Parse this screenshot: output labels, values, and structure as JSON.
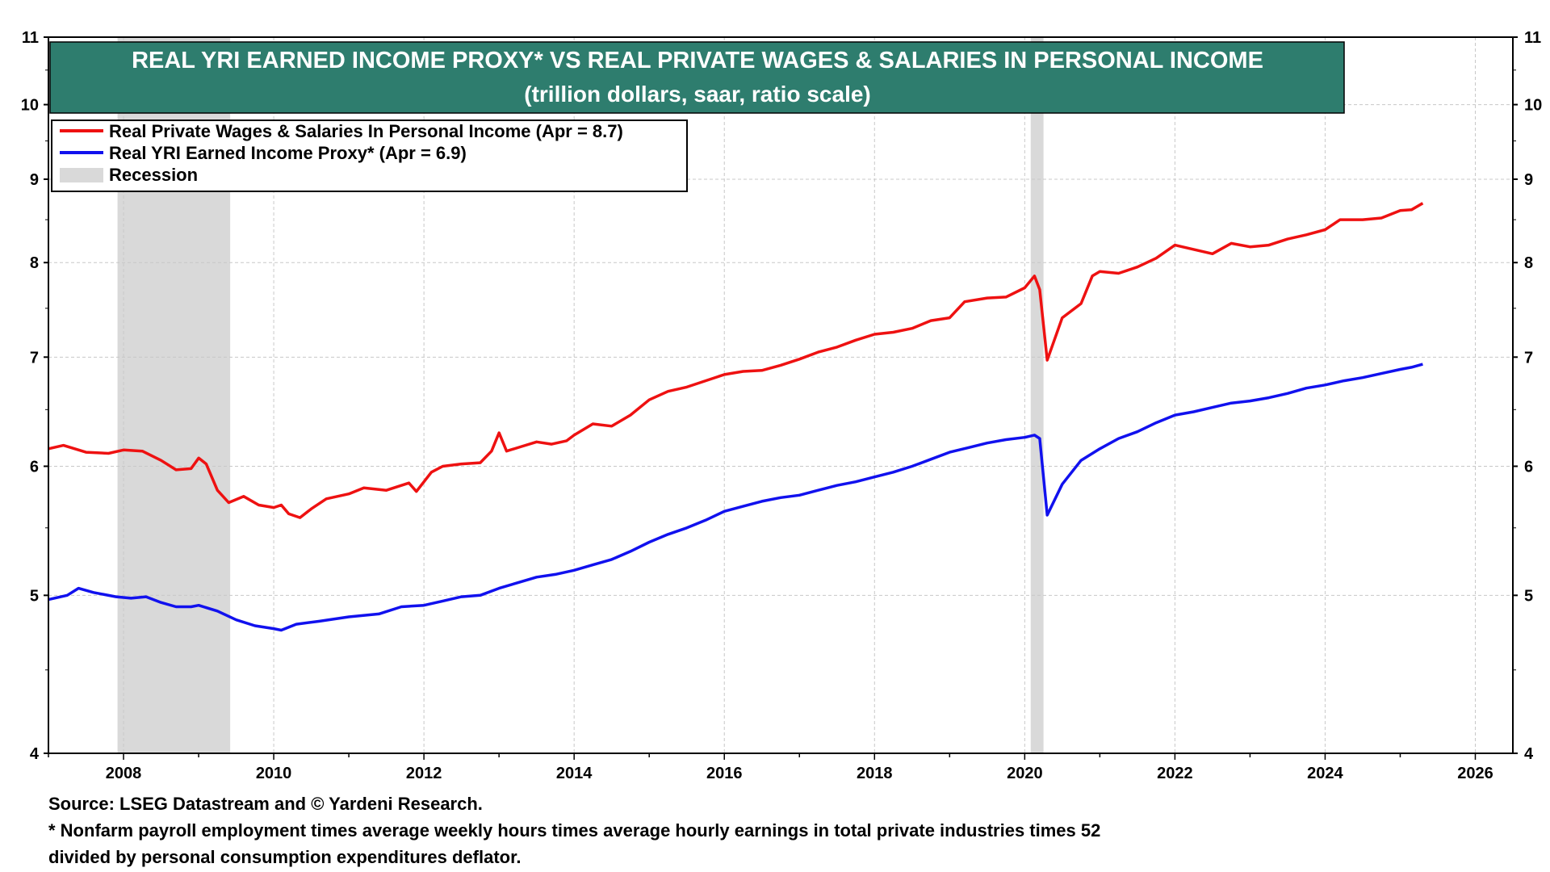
{
  "chart_data": {
    "type": "line",
    "title": "REAL YRI EARNED INCOME PROXY* VS REAL PRIVATE WAGES & SALARIES IN PERSONAL INCOME",
    "subtitle": "(trillion dollars, saar, ratio scale)",
    "yscale": "log",
    "ylim": [
      4,
      11
    ],
    "xlim": [
      2007.0,
      2026.5
    ],
    "yticks": [
      4,
      5,
      6,
      7,
      8,
      9,
      10,
      11
    ],
    "xticks": [
      2008,
      2010,
      2012,
      2014,
      2016,
      2018,
      2020,
      2022,
      2024,
      2026
    ],
    "grid": true,
    "legend_position": "top-left",
    "colors": {
      "title_bg": "#2e7d6e",
      "red": "#ee1111",
      "blue": "#1111ee",
      "recession": "#d9d9d9"
    },
    "legend": [
      {
        "label": "Real Private Wages & Salaries In Personal Income (Apr = 8.7)",
        "kind": "line",
        "color": "#ee1111"
      },
      {
        "label": "Real YRI Earned Income Proxy* (Apr = 6.9)",
        "kind": "line",
        "color": "#1111ee"
      },
      {
        "label": "Recession",
        "kind": "band",
        "color": "#d9d9d9"
      }
    ],
    "recessions": [
      [
        2007.92,
        2009.42
      ],
      [
        2020.08,
        2020.25
      ]
    ],
    "series": [
      {
        "color": "#ee1111",
        "points": [
          [
            2007.0,
            6.15
          ],
          [
            2007.2,
            6.18
          ],
          [
            2007.5,
            6.12
          ],
          [
            2007.8,
            6.11
          ],
          [
            2008.0,
            6.14
          ],
          [
            2008.25,
            6.13
          ],
          [
            2008.5,
            6.05
          ],
          [
            2008.7,
            5.97
          ],
          [
            2008.9,
            5.98
          ],
          [
            2009.0,
            6.07
          ],
          [
            2009.1,
            6.02
          ],
          [
            2009.25,
            5.8
          ],
          [
            2009.4,
            5.7
          ],
          [
            2009.6,
            5.75
          ],
          [
            2009.8,
            5.68
          ],
          [
            2010.0,
            5.66
          ],
          [
            2010.1,
            5.68
          ],
          [
            2010.2,
            5.61
          ],
          [
            2010.35,
            5.58
          ],
          [
            2010.5,
            5.65
          ],
          [
            2010.7,
            5.73
          ],
          [
            2011.0,
            5.77
          ],
          [
            2011.2,
            5.82
          ],
          [
            2011.5,
            5.8
          ],
          [
            2011.8,
            5.86
          ],
          [
            2011.9,
            5.79
          ],
          [
            2012.1,
            5.95
          ],
          [
            2012.25,
            6.0
          ],
          [
            2012.5,
            6.02
          ],
          [
            2012.75,
            6.03
          ],
          [
            2012.9,
            6.13
          ],
          [
            2013.0,
            6.29
          ],
          [
            2013.1,
            6.13
          ],
          [
            2013.3,
            6.17
          ],
          [
            2013.5,
            6.21
          ],
          [
            2013.7,
            6.19
          ],
          [
            2013.9,
            6.22
          ],
          [
            2014.0,
            6.27
          ],
          [
            2014.25,
            6.37
          ],
          [
            2014.5,
            6.35
          ],
          [
            2014.75,
            6.45
          ],
          [
            2015.0,
            6.59
          ],
          [
            2015.25,
            6.67
          ],
          [
            2015.5,
            6.71
          ],
          [
            2015.75,
            6.77
          ],
          [
            2016.0,
            6.83
          ],
          [
            2016.25,
            6.86
          ],
          [
            2016.5,
            6.87
          ],
          [
            2016.75,
            6.92
          ],
          [
            2017.0,
            6.98
          ],
          [
            2017.25,
            7.05
          ],
          [
            2017.5,
            7.1
          ],
          [
            2017.75,
            7.17
          ],
          [
            2018.0,
            7.23
          ],
          [
            2018.25,
            7.25
          ],
          [
            2018.5,
            7.29
          ],
          [
            2018.75,
            7.37
          ],
          [
            2019.0,
            7.4
          ],
          [
            2019.2,
            7.57
          ],
          [
            2019.5,
            7.61
          ],
          [
            2019.75,
            7.62
          ],
          [
            2020.0,
            7.72
          ],
          [
            2020.13,
            7.85
          ],
          [
            2020.2,
            7.7
          ],
          [
            2020.3,
            6.97
          ],
          [
            2020.5,
            7.4
          ],
          [
            2020.75,
            7.55
          ],
          [
            2020.9,
            7.85
          ],
          [
            2021.0,
            7.9
          ],
          [
            2021.25,
            7.88
          ],
          [
            2021.5,
            7.95
          ],
          [
            2021.75,
            8.05
          ],
          [
            2022.0,
            8.2
          ],
          [
            2022.25,
            8.15
          ],
          [
            2022.5,
            8.1
          ],
          [
            2022.75,
            8.22
          ],
          [
            2023.0,
            8.18
          ],
          [
            2023.25,
            8.2
          ],
          [
            2023.5,
            8.27
          ],
          [
            2023.75,
            8.32
          ],
          [
            2024.0,
            8.38
          ],
          [
            2024.2,
            8.5
          ],
          [
            2024.5,
            8.5
          ],
          [
            2024.75,
            8.52
          ],
          [
            2025.0,
            8.61
          ],
          [
            2025.15,
            8.62
          ],
          [
            2025.3,
            8.7
          ]
        ]
      },
      {
        "color": "#1111ee",
        "points": [
          [
            2007.0,
            4.97
          ],
          [
            2007.25,
            5.0
          ],
          [
            2007.4,
            5.05
          ],
          [
            2007.6,
            5.02
          ],
          [
            2007.9,
            4.99
          ],
          [
            2008.1,
            4.98
          ],
          [
            2008.3,
            4.99
          ],
          [
            2008.5,
            4.95
          ],
          [
            2008.7,
            4.92
          ],
          [
            2008.9,
            4.92
          ],
          [
            2009.0,
            4.93
          ],
          [
            2009.25,
            4.89
          ],
          [
            2009.5,
            4.83
          ],
          [
            2009.75,
            4.79
          ],
          [
            2010.0,
            4.77
          ],
          [
            2010.1,
            4.76
          ],
          [
            2010.3,
            4.8
          ],
          [
            2010.6,
            4.82
          ],
          [
            2011.0,
            4.85
          ],
          [
            2011.4,
            4.87
          ],
          [
            2011.7,
            4.92
          ],
          [
            2012.0,
            4.93
          ],
          [
            2012.25,
            4.96
          ],
          [
            2012.5,
            4.99
          ],
          [
            2012.75,
            5.0
          ],
          [
            2013.0,
            5.05
          ],
          [
            2013.25,
            5.09
          ],
          [
            2013.5,
            5.13
          ],
          [
            2013.75,
            5.15
          ],
          [
            2014.0,
            5.18
          ],
          [
            2014.25,
            5.22
          ],
          [
            2014.5,
            5.26
          ],
          [
            2014.75,
            5.32
          ],
          [
            2015.0,
            5.39
          ],
          [
            2015.25,
            5.45
          ],
          [
            2015.5,
            5.5
          ],
          [
            2015.75,
            5.56
          ],
          [
            2016.0,
            5.63
          ],
          [
            2016.25,
            5.67
          ],
          [
            2016.5,
            5.71
          ],
          [
            2016.75,
            5.74
          ],
          [
            2017.0,
            5.76
          ],
          [
            2017.25,
            5.8
          ],
          [
            2017.5,
            5.84
          ],
          [
            2017.75,
            5.87
          ],
          [
            2018.0,
            5.91
          ],
          [
            2018.25,
            5.95
          ],
          [
            2018.5,
            6.0
          ],
          [
            2018.75,
            6.06
          ],
          [
            2019.0,
            6.12
          ],
          [
            2019.25,
            6.16
          ],
          [
            2019.5,
            6.2
          ],
          [
            2019.75,
            6.23
          ],
          [
            2020.0,
            6.25
          ],
          [
            2020.13,
            6.27
          ],
          [
            2020.2,
            6.24
          ],
          [
            2020.3,
            5.6
          ],
          [
            2020.5,
            5.85
          ],
          [
            2020.75,
            6.05
          ],
          [
            2021.0,
            6.15
          ],
          [
            2021.25,
            6.24
          ],
          [
            2021.5,
            6.3
          ],
          [
            2021.75,
            6.38
          ],
          [
            2022.0,
            6.45
          ],
          [
            2022.25,
            6.48
          ],
          [
            2022.5,
            6.52
          ],
          [
            2022.75,
            6.56
          ],
          [
            2023.0,
            6.58
          ],
          [
            2023.25,
            6.61
          ],
          [
            2023.5,
            6.65
          ],
          [
            2023.75,
            6.7
          ],
          [
            2024.0,
            6.73
          ],
          [
            2024.25,
            6.77
          ],
          [
            2024.5,
            6.8
          ],
          [
            2024.75,
            6.84
          ],
          [
            2025.0,
            6.88
          ],
          [
            2025.15,
            6.9
          ],
          [
            2025.3,
            6.93
          ]
        ]
      }
    ]
  },
  "footnotes": {
    "source": "Source: LSEG Datastream and © Yardeni Research.",
    "note_line1": "* Nonfarm payroll employment times average weekly hours times average hourly earnings in total private industries times 52",
    "note_line2": "divided by personal consumption expenditures deflator."
  }
}
